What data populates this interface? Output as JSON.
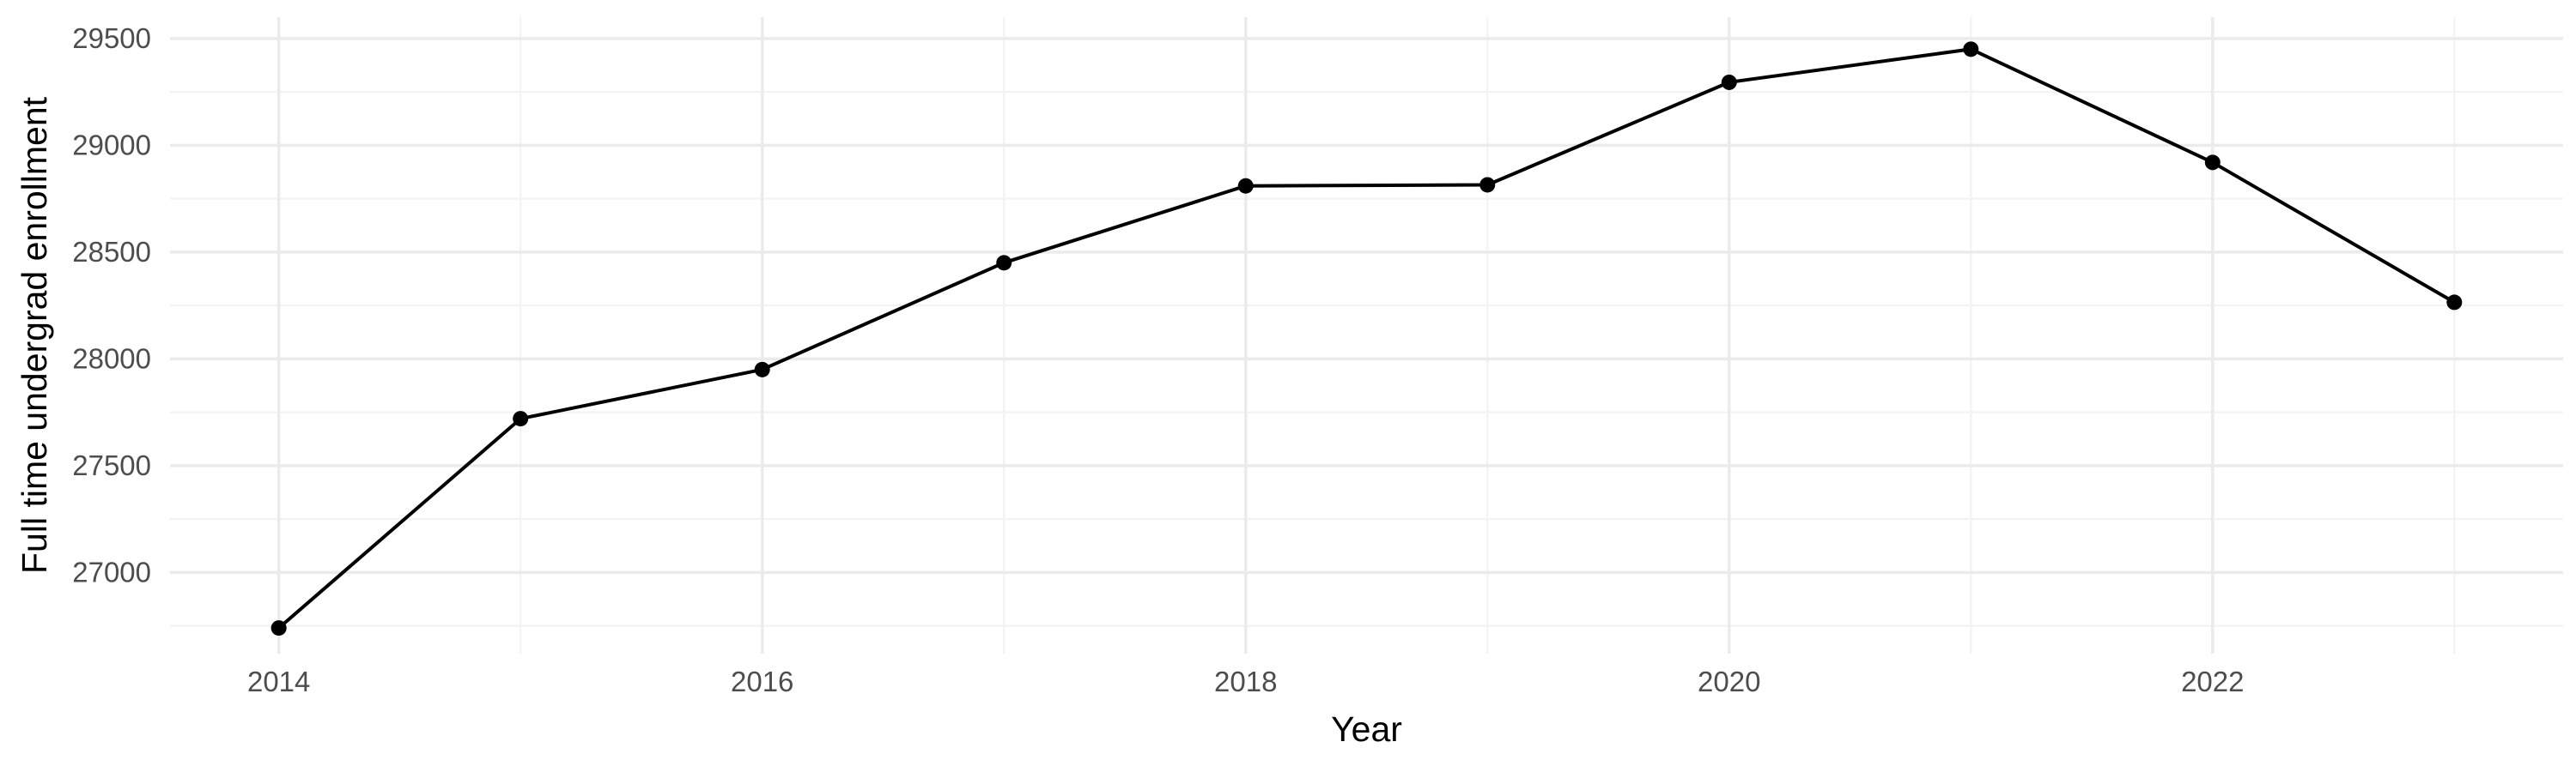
{
  "chart_data": {
    "type": "line",
    "title": "",
    "xlabel": "Year",
    "ylabel": "Full time undergrad enrollment",
    "x": [
      2014,
      2015,
      2016,
      2017,
      2018,
      2019,
      2020,
      2021,
      2022,
      2023
    ],
    "series": [
      {
        "values": [
          26740,
          27720,
          27950,
          28450,
          28810,
          28815,
          29295,
          29450,
          28920,
          28265
        ]
      }
    ],
    "xlim": [
      2013.55,
      2023.45
    ],
    "ylim": [
      26620,
      29600
    ],
    "x_ticks": [
      2014,
      2016,
      2018,
      2020,
      2022
    ],
    "x_tick_labels": [
      "2014",
      "2016",
      "2018",
      "2020",
      "2022"
    ],
    "x_minor_ticks": [
      2015,
      2017,
      2019,
      2021,
      2023
    ],
    "y_ticks": [
      27000,
      27500,
      28000,
      28500,
      29000,
      29500
    ],
    "y_tick_labels": [
      "27000",
      "27500",
      "28000",
      "28500",
      "29000",
      "29500"
    ],
    "y_minor_ticks": [
      26750,
      27250,
      27750,
      28250,
      28750,
      29250
    ],
    "grid": true,
    "legend": "none",
    "line_color": "#000000",
    "point_color": "#000000"
  }
}
